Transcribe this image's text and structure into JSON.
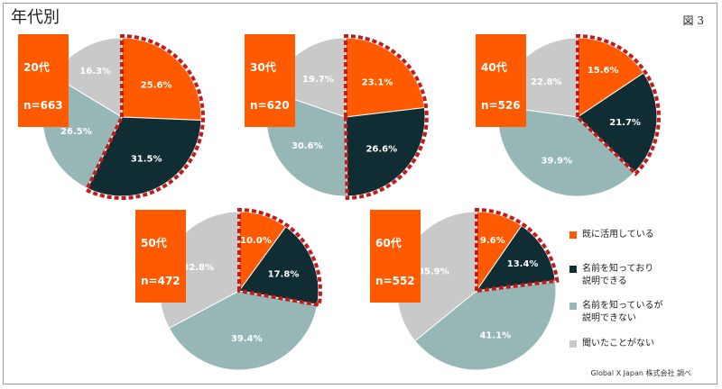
{
  "header": {
    "title": "年代別",
    "figure": "図 3"
  },
  "source": "Global X Japan 株式会社 調べ",
  "colors": {
    "active": "#ff5a00",
    "know_explain": "#0f2d32",
    "know_cannot": "#96b7b6",
    "never": "#c9c9c9",
    "highlight_border": "#c21b1b"
  },
  "legend": [
    {
      "key": "active",
      "label": "既に活用している"
    },
    {
      "key": "know_explain",
      "label": "名前を知っており\n説明できる"
    },
    {
      "key": "know_cannot",
      "label": "名前を知っているが\n説明できない"
    },
    {
      "key": "never",
      "label": "聞いたことがない"
    }
  ],
  "chart_data": [
    {
      "type": "pie",
      "age": "20代",
      "n": "n=663",
      "values": [
        25.6,
        31.5,
        26.5,
        16.3
      ],
      "labels": [
        "25.6%",
        "31.5%",
        "26.5%",
        "16.3%"
      ]
    },
    {
      "type": "pie",
      "age": "30代",
      "n": "n=620",
      "values": [
        23.1,
        26.6,
        30.6,
        19.7
      ],
      "labels": [
        "23.1%",
        "26.6%",
        "30.6%",
        "19.7%"
      ]
    },
    {
      "type": "pie",
      "age": "40代",
      "n": "n=526",
      "values": [
        15.6,
        21.7,
        39.9,
        22.8
      ],
      "labels": [
        "15.6%",
        "21.7%",
        "39.9%",
        "22.8%"
      ]
    },
    {
      "type": "pie",
      "age": "50代",
      "n": "n=472",
      "values": [
        10.0,
        17.8,
        39.4,
        32.8
      ],
      "labels": [
        "10.0%",
        "17.8%",
        "39.4%",
        "32.8%"
      ]
    },
    {
      "type": "pie",
      "age": "60代",
      "n": "n=552",
      "values": [
        9.6,
        13.4,
        41.1,
        35.9
      ],
      "labels": [
        "9.6%",
        "13.4%",
        "41.1%",
        "35.9%"
      ]
    }
  ]
}
